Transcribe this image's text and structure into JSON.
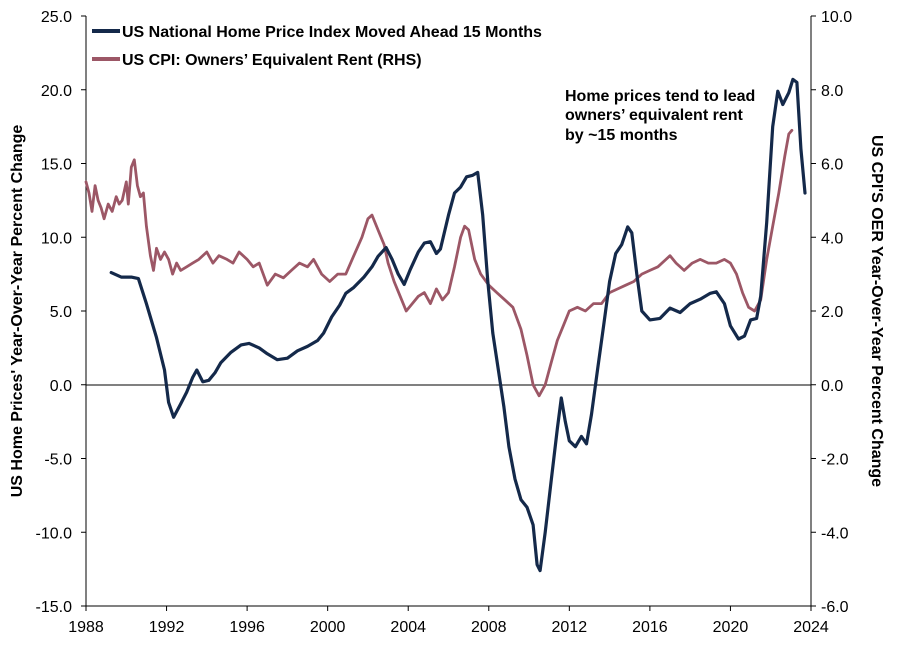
{
  "chart_data": {
    "type": "line",
    "title": "",
    "xlabel": "",
    "ylabel_left": "US Home Prices' Year-Over-Year Percent Change",
    "ylabel_right": "US CPI'S OER Year-Over-Year Percent Change",
    "xlim": [
      1988,
      2024
    ],
    "ylim_left": [
      -15,
      25
    ],
    "ylim_right": [
      -6,
      10
    ],
    "x_ticks": [
      "1988",
      "1992",
      "1996",
      "2000",
      "2004",
      "2008",
      "2012",
      "2016",
      "2020",
      "2024"
    ],
    "y_ticks_left": [
      "25.0",
      "20.0",
      "15.0",
      "10.0",
      "5.0",
      "0.0",
      "-5.0",
      "-10.0",
      "-15.0"
    ],
    "y_ticks_right": [
      "10.0",
      "8.0",
      "6.0",
      "4.0",
      "2.0",
      "0.0",
      "-2.0",
      "-4.0",
      "-6.0"
    ],
    "legend_position": "top-left",
    "grid": false,
    "zero_line": true,
    "annotation": [
      "Home prices tend to lead",
      "owners’ equivalent rent",
      "by ~15 months"
    ],
    "series": [
      {
        "name": "US National Home Price Index Moved Ahead 15 Months",
        "axis": "left",
        "color": "#14294a",
        "points": [
          [
            1989.25,
            7.6
          ],
          [
            1989.75,
            7.3
          ],
          [
            1990.25,
            7.3
          ],
          [
            1990.6,
            7.2
          ],
          [
            1991.0,
            5.5
          ],
          [
            1991.5,
            3.2
          ],
          [
            1991.9,
            1.0
          ],
          [
            1992.1,
            -1.2
          ],
          [
            1992.35,
            -2.2
          ],
          [
            1992.7,
            -1.3
          ],
          [
            1993.0,
            -0.5
          ],
          [
            1993.3,
            0.5
          ],
          [
            1993.5,
            1.0
          ],
          [
            1993.8,
            0.2
          ],
          [
            1994.1,
            0.3
          ],
          [
            1994.4,
            0.8
          ],
          [
            1994.7,
            1.5
          ],
          [
            1995.2,
            2.2
          ],
          [
            1995.7,
            2.7
          ],
          [
            1996.1,
            2.8
          ],
          [
            1996.6,
            2.5
          ],
          [
            1997.0,
            2.1
          ],
          [
            1997.5,
            1.7
          ],
          [
            1998.0,
            1.8
          ],
          [
            1998.5,
            2.3
          ],
          [
            1999.0,
            2.6
          ],
          [
            1999.5,
            3.0
          ],
          [
            1999.8,
            3.5
          ],
          [
            2000.2,
            4.6
          ],
          [
            2000.6,
            5.4
          ],
          [
            2000.9,
            6.2
          ],
          [
            2001.3,
            6.6
          ],
          [
            2001.8,
            7.3
          ],
          [
            2002.2,
            8.0
          ],
          [
            2002.5,
            8.7
          ],
          [
            2002.9,
            9.3
          ],
          [
            2003.2,
            8.5
          ],
          [
            2003.5,
            7.5
          ],
          [
            2003.8,
            6.8
          ],
          [
            2004.1,
            7.8
          ],
          [
            2004.5,
            9.0
          ],
          [
            2004.8,
            9.6
          ],
          [
            2005.1,
            9.7
          ],
          [
            2005.4,
            8.9
          ],
          [
            2005.6,
            9.2
          ],
          [
            2006.0,
            11.5
          ],
          [
            2006.3,
            13.0
          ],
          [
            2006.6,
            13.4
          ],
          [
            2006.9,
            14.1
          ],
          [
            2007.2,
            14.2
          ],
          [
            2007.45,
            14.4
          ],
          [
            2007.7,
            11.5
          ],
          [
            2007.95,
            7.0
          ],
          [
            2008.2,
            3.5
          ],
          [
            2008.5,
            0.8
          ],
          [
            2008.75,
            -1.5
          ],
          [
            2009.0,
            -4.2
          ],
          [
            2009.3,
            -6.4
          ],
          [
            2009.6,
            -7.8
          ],
          [
            2009.9,
            -8.3
          ],
          [
            2010.2,
            -9.5
          ],
          [
            2010.4,
            -12.2
          ],
          [
            2010.55,
            -12.6
          ],
          [
            2010.8,
            -10.0
          ],
          [
            2011.1,
            -6.5
          ],
          [
            2011.4,
            -3.0
          ],
          [
            2011.6,
            -0.9
          ],
          [
            2011.8,
            -2.5
          ],
          [
            2012.0,
            -3.8
          ],
          [
            2012.3,
            -4.2
          ],
          [
            2012.6,
            -3.5
          ],
          [
            2012.85,
            -4.0
          ],
          [
            2013.1,
            -2.0
          ],
          [
            2013.4,
            1.0
          ],
          [
            2013.7,
            4.0
          ],
          [
            2014.0,
            7.0
          ],
          [
            2014.3,
            8.9
          ],
          [
            2014.6,
            9.5
          ],
          [
            2014.9,
            10.7
          ],
          [
            2015.1,
            10.3
          ],
          [
            2015.35,
            7.5
          ],
          [
            2015.6,
            5.0
          ],
          [
            2016.0,
            4.4
          ],
          [
            2016.5,
            4.5
          ],
          [
            2017.0,
            5.2
          ],
          [
            2017.5,
            4.9
          ],
          [
            2018.0,
            5.5
          ],
          [
            2018.5,
            5.8
          ],
          [
            2019.0,
            6.2
          ],
          [
            2019.3,
            6.3
          ],
          [
            2019.7,
            5.5
          ],
          [
            2020.0,
            4.0
          ],
          [
            2020.4,
            3.1
          ],
          [
            2020.7,
            3.3
          ],
          [
            2021.0,
            4.4
          ],
          [
            2021.3,
            4.5
          ],
          [
            2021.5,
            6.0
          ],
          [
            2021.8,
            11.0
          ],
          [
            2022.1,
            17.5
          ],
          [
            2022.35,
            19.9
          ],
          [
            2022.6,
            19.0
          ],
          [
            2022.9,
            19.8
          ],
          [
            2023.1,
            20.7
          ],
          [
            2023.3,
            20.5
          ],
          [
            2023.5,
            16.0
          ],
          [
            2023.7,
            13.0
          ]
        ]
      },
      {
        "name": "US CPI: Owners’ Equivalent Rent (RHS)",
        "axis": "right",
        "color": "#9c5766",
        "points": [
          [
            1988.0,
            5.5
          ],
          [
            1988.15,
            5.2
          ],
          [
            1988.3,
            4.7
          ],
          [
            1988.45,
            5.4
          ],
          [
            1988.6,
            5.0
          ],
          [
            1988.75,
            4.8
          ],
          [
            1988.9,
            4.5
          ],
          [
            1989.1,
            4.9
          ],
          [
            1989.3,
            4.7
          ],
          [
            1989.5,
            5.1
          ],
          [
            1989.65,
            4.9
          ],
          [
            1989.8,
            5.0
          ],
          [
            1990.0,
            5.5
          ],
          [
            1990.1,
            4.9
          ],
          [
            1990.25,
            5.9
          ],
          [
            1990.4,
            6.1
          ],
          [
            1990.55,
            5.4
          ],
          [
            1990.7,
            5.1
          ],
          [
            1990.85,
            5.2
          ],
          [
            1991.0,
            4.3
          ],
          [
            1991.2,
            3.5
          ],
          [
            1991.35,
            3.1
          ],
          [
            1991.5,
            3.7
          ],
          [
            1991.7,
            3.4
          ],
          [
            1991.9,
            3.6
          ],
          [
            1992.1,
            3.4
          ],
          [
            1992.3,
            3.0
          ],
          [
            1992.5,
            3.3
          ],
          [
            1992.7,
            3.1
          ],
          [
            1993.0,
            3.2
          ],
          [
            1993.3,
            3.3
          ],
          [
            1993.6,
            3.4
          ],
          [
            1994.0,
            3.6
          ],
          [
            1994.3,
            3.3
          ],
          [
            1994.6,
            3.5
          ],
          [
            1995.0,
            3.4
          ],
          [
            1995.3,
            3.3
          ],
          [
            1995.6,
            3.6
          ],
          [
            1996.0,
            3.4
          ],
          [
            1996.3,
            3.2
          ],
          [
            1996.6,
            3.3
          ],
          [
            1997.0,
            2.7
          ],
          [
            1997.4,
            3.0
          ],
          [
            1997.8,
            2.9
          ],
          [
            1998.2,
            3.1
          ],
          [
            1998.6,
            3.3
          ],
          [
            1999.0,
            3.2
          ],
          [
            1999.3,
            3.4
          ],
          [
            1999.7,
            3.0
          ],
          [
            2000.1,
            2.8
          ],
          [
            2000.5,
            3.0
          ],
          [
            2000.9,
            3.0
          ],
          [
            2001.3,
            3.5
          ],
          [
            2001.7,
            4.0
          ],
          [
            2002.0,
            4.5
          ],
          [
            2002.2,
            4.6
          ],
          [
            2002.5,
            4.2
          ],
          [
            2002.8,
            3.8
          ],
          [
            2003.0,
            3.3
          ],
          [
            2003.3,
            2.8
          ],
          [
            2003.6,
            2.4
          ],
          [
            2003.9,
            2.0
          ],
          [
            2004.2,
            2.2
          ],
          [
            2004.5,
            2.4
          ],
          [
            2004.8,
            2.5
          ],
          [
            2005.1,
            2.2
          ],
          [
            2005.4,
            2.6
          ],
          [
            2005.7,
            2.3
          ],
          [
            2006.0,
            2.5
          ],
          [
            2006.3,
            3.2
          ],
          [
            2006.6,
            4.0
          ],
          [
            2006.8,
            4.3
          ],
          [
            2007.0,
            4.2
          ],
          [
            2007.3,
            3.4
          ],
          [
            2007.6,
            3.0
          ],
          [
            2008.0,
            2.7
          ],
          [
            2008.4,
            2.5
          ],
          [
            2008.8,
            2.3
          ],
          [
            2009.2,
            2.1
          ],
          [
            2009.6,
            1.5
          ],
          [
            2009.9,
            0.8
          ],
          [
            2010.2,
            0.0
          ],
          [
            2010.5,
            -0.3
          ],
          [
            2010.8,
            0.0
          ],
          [
            2011.1,
            0.6
          ],
          [
            2011.4,
            1.2
          ],
          [
            2011.7,
            1.6
          ],
          [
            2012.0,
            2.0
          ],
          [
            2012.4,
            2.1
          ],
          [
            2012.8,
            2.0
          ],
          [
            2013.2,
            2.2
          ],
          [
            2013.6,
            2.2
          ],
          [
            2014.0,
            2.5
          ],
          [
            2014.4,
            2.6
          ],
          [
            2014.8,
            2.7
          ],
          [
            2015.2,
            2.8
          ],
          [
            2015.6,
            3.0
          ],
          [
            2016.0,
            3.1
          ],
          [
            2016.4,
            3.2
          ],
          [
            2016.8,
            3.4
          ],
          [
            2017.0,
            3.5
          ],
          [
            2017.3,
            3.3
          ],
          [
            2017.7,
            3.1
          ],
          [
            2018.1,
            3.3
          ],
          [
            2018.5,
            3.4
          ],
          [
            2018.9,
            3.3
          ],
          [
            2019.3,
            3.3
          ],
          [
            2019.7,
            3.4
          ],
          [
            2020.0,
            3.3
          ],
          [
            2020.3,
            3.0
          ],
          [
            2020.6,
            2.5
          ],
          [
            2020.9,
            2.1
          ],
          [
            2021.2,
            2.0
          ],
          [
            2021.5,
            2.3
          ],
          [
            2021.8,
            3.4
          ],
          [
            2022.1,
            4.3
          ],
          [
            2022.4,
            5.2
          ],
          [
            2022.7,
            6.2
          ],
          [
            2022.9,
            6.8
          ],
          [
            2023.05,
            6.9
          ]
        ]
      }
    ]
  }
}
